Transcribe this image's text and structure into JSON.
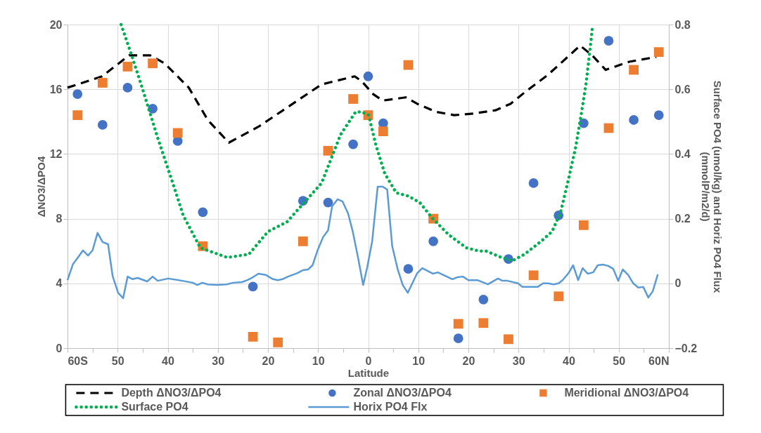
{
  "chart_data": {
    "type": "line",
    "xlabel": "Latitude",
    "ylabel": "ΔNO3/ΔPO4",
    "y2label": "Surface PO4 (umol/kg) and Horiz PO4 Flux (mmolP/m2/d)",
    "xlim": [
      -60,
      60
    ],
    "xticks": [
      {
        "value": -60,
        "label": "60S"
      },
      {
        "value": -55,
        "label": null
      },
      {
        "value": -50,
        "label": "50"
      },
      {
        "value": -45,
        "label": null
      },
      {
        "value": -40,
        "label": "40"
      },
      {
        "value": -35,
        "label": null
      },
      {
        "value": -30,
        "label": "30"
      },
      {
        "value": -25,
        "label": null
      },
      {
        "value": -20,
        "label": "20"
      },
      {
        "value": -15,
        "label": null
      },
      {
        "value": -10,
        "label": "10"
      },
      {
        "value": -5,
        "label": null
      },
      {
        "value": 0,
        "label": "0"
      },
      {
        "value": 5,
        "label": null
      },
      {
        "value": 10,
        "label": "10"
      },
      {
        "value": 15,
        "label": null
      },
      {
        "value": 20,
        "label": "20"
      },
      {
        "value": 25,
        "label": null
      },
      {
        "value": 30,
        "label": "30"
      },
      {
        "value": 35,
        "label": null
      },
      {
        "value": 40,
        "label": "40"
      },
      {
        "value": 45,
        "label": null
      },
      {
        "value": 50,
        "label": "50"
      },
      {
        "value": 55,
        "label": null
      },
      {
        "value": 60,
        "label": "60N"
      }
    ],
    "ylim": [
      0,
      20
    ],
    "yticks": [
      0,
      4,
      8,
      12,
      16,
      20
    ],
    "y2lim": [
      -0.2,
      0.8
    ],
    "y2ticks": [
      -0.2,
      0,
      0.2,
      0.4,
      0.6,
      0.8
    ],
    "grid": true,
    "legend": "bottom",
    "series": [
      {
        "name": "Depth ΔNO3/ΔPO4",
        "line_style": "dashed",
        "color": "#000000",
        "x": [
          -60,
          -53.1,
          -47.7,
          -45,
          -43.5,
          -40.6,
          -35.8,
          -32,
          -27.8,
          -21.8,
          -9.3,
          -2.7,
          -1.3,
          1,
          2.9,
          7.5,
          9.8,
          13.6,
          17.2,
          21,
          25.4,
          28.4,
          31.2,
          35.9,
          42.3,
          44.7,
          47.4,
          52.1,
          57.5
        ],
        "values": [
          16.1,
          16.8,
          18.1,
          18.1,
          18.1,
          17.6,
          16.1,
          14.1,
          12.7,
          13.7,
          16.3,
          16.8,
          16.5,
          15.7,
          15.3,
          15.5,
          15.1,
          14.6,
          14.4,
          14.5,
          14.7,
          15.1,
          15.8,
          16.9,
          18.7,
          18.1,
          17.2,
          17.7,
          18.0
        ]
      },
      {
        "name": "Zonal ΔNO3/ΔPO4",
        "type": "scatter",
        "marker": "circle",
        "color": "#4472c4",
        "x": [
          -58,
          -53,
          -48,
          -43,
          -38,
          -33,
          -23,
          -13,
          -8,
          -3,
          0,
          3,
          8,
          13,
          18,
          23,
          28,
          33,
          38,
          43,
          48,
          53,
          58
        ],
        "values": [
          15.7,
          13.8,
          16.1,
          14.8,
          12.8,
          8.4,
          3.8,
          9.1,
          9.0,
          12.6,
          16.8,
          13.9,
          4.9,
          6.6,
          0.6,
          3.0,
          5.5,
          10.2,
          8.2,
          13.9,
          19.0,
          14.1,
          14.4
        ]
      },
      {
        "name": "Meridional ΔNO3/ΔPO4",
        "type": "scatter",
        "marker": "square",
        "color": "#ed7d31",
        "x": [
          -58,
          -53,
          -48,
          -43,
          -38,
          -33,
          -23,
          -18,
          -13,
          -8,
          -3,
          0,
          3,
          8,
          13,
          18,
          23,
          28,
          33,
          38,
          43,
          48,
          53,
          58
        ],
        "values": [
          14.4,
          16.4,
          17.4,
          17.6,
          13.3,
          6.3,
          0.7,
          0.35,
          6.6,
          12.2,
          15.4,
          14.4,
          13.4,
          17.5,
          8.0,
          1.5,
          1.55,
          0.55,
          4.5,
          3.2,
          7.6,
          13.6,
          17.2,
          18.3
        ]
      },
      {
        "name": "Surface PO4",
        "line_style": "dotted",
        "axis": "y2",
        "color": "#00b050",
        "x": [
          -49.3,
          -47.3,
          -45,
          -42,
          -39.2,
          -36.9,
          -33.5,
          -28.1,
          -23.8,
          -20,
          -16.2,
          -13.9,
          -9.3,
          -5.5,
          -2.5,
          -1.3,
          0.1,
          1.5,
          3.3,
          5.6,
          8,
          10.3,
          12.9,
          16.1,
          19.6,
          22.1,
          23.5,
          26.6,
          28.8,
          31.2,
          34.5,
          36.7,
          38.4,
          39.8,
          41.4,
          42.6,
          43.5,
          44.4,
          44.8
        ],
        "values": [
          0.8,
          0.71,
          0.6,
          0.45,
          0.32,
          0.21,
          0.11,
          0.08,
          0.09,
          0.16,
          0.19,
          0.23,
          0.31,
          0.46,
          0.53,
          0.53,
          0.52,
          0.43,
          0.34,
          0.28,
          0.27,
          0.25,
          0.2,
          0.15,
          0.11,
          0.1,
          0.1,
          0.08,
          0.07,
          0.09,
          0.13,
          0.16,
          0.22,
          0.31,
          0.42,
          0.53,
          0.62,
          0.74,
          0.8
        ]
      },
      {
        "name": "Horix PO4 Flx",
        "line_style": "solid",
        "axis": "y2",
        "color": "#5b9bd5",
        "x": [
          -60,
          -58.9,
          -58,
          -56.9,
          -55.9,
          -55,
          -54,
          -53,
          -51.9,
          -51,
          -49.9,
          -48.9,
          -48,
          -47,
          -46,
          -44.1,
          -43,
          -42,
          -39.9,
          -37.1,
          -35,
          -34.1,
          -33.1,
          -32,
          -30.2,
          -28.3,
          -26.9,
          -25.2,
          -24.1,
          -23,
          -21.9,
          -20.4,
          -19,
          -18,
          -17.1,
          -16,
          -14.1,
          -13,
          -12,
          -11.1,
          -10.1,
          -9,
          -8,
          -7.2,
          -6.1,
          -5.1,
          -4,
          -3.1,
          -2,
          -1,
          -0.2,
          0.8,
          1.9,
          2.9,
          3.8,
          4.8,
          5.9,
          6.9,
          7.9,
          9.8,
          10.8,
          12.9,
          13.9,
          16.8,
          17.8,
          18.9,
          20,
          21.8,
          23.9,
          25.9,
          26.8,
          27.8,
          29.9,
          30.8,
          33.8,
          34.9,
          35.9,
          37,
          38,
          38.8,
          40,
          40.9,
          41.9,
          42.8,
          43.8,
          44.9,
          45.8,
          46.8,
          47.9,
          48.9,
          49.9,
          50.8,
          51.9,
          52.9,
          53.9,
          54.9,
          55.9,
          56.8,
          57.8
        ],
        "values": [
          0.01,
          0.06,
          0.078,
          0.102,
          0.086,
          0.102,
          0.156,
          0.128,
          0.121,
          0.023,
          -0.029,
          -0.046,
          0.021,
          0.013,
          0.017,
          0.006,
          0.021,
          0.008,
          0.015,
          0.008,
          0.002,
          -0.005,
          0.002,
          -0.003,
          -0.005,
          -0.003,
          0.002,
          0.004,
          0.01,
          0.019,
          0.03,
          0.026,
          0.013,
          0.01,
          0.013,
          0.021,
          0.032,
          0.041,
          0.043,
          0.056,
          0.102,
          0.143,
          0.164,
          0.238,
          0.26,
          0.253,
          0.216,
          0.162,
          0.078,
          -0.005,
          0.049,
          0.13,
          0.299,
          0.299,
          0.29,
          0.115,
          0.043,
          -0.005,
          -0.029,
          0.032,
          0.047,
          0.03,
          0.034,
          0.013,
          0.019,
          0.021,
          0.01,
          0.01,
          -0.003,
          0.015,
          0.008,
          0.008,
          0.0,
          -0.011,
          -0.011,
          0.0,
          0.0,
          -0.003,
          0.0,
          0.01,
          0.032,
          0.056,
          0.01,
          0.047,
          0.03,
          0.034,
          0.056,
          0.058,
          0.054,
          0.045,
          0.008,
          0.043,
          0.026,
          0.0,
          -0.013,
          -0.011,
          -0.044,
          -0.024,
          0.028
        ]
      }
    ]
  }
}
